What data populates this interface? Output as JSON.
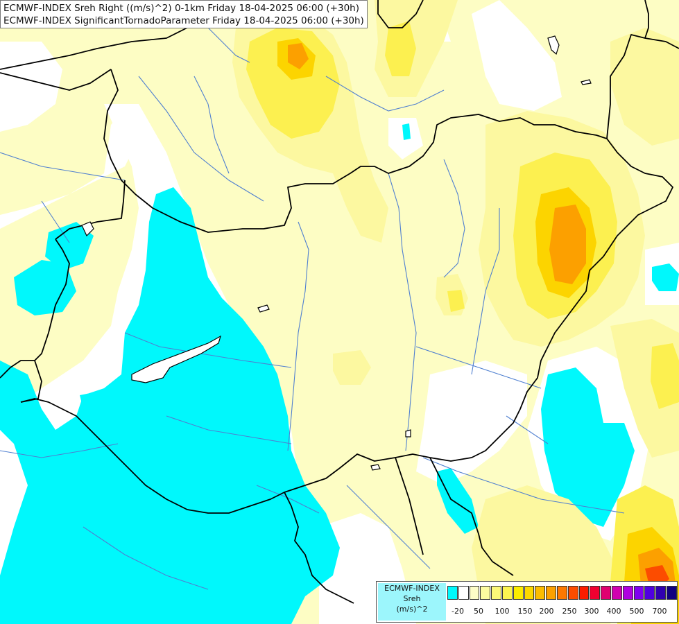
{
  "header": {
    "line1": "ECMWF-INDEX Sreh Right ((m/s)^2) 0-1km Friday 18-04-2025 06:00 (+30h)",
    "line2": "ECMWF-INDEX SignificantTornadoParameter Friday 18-04-2025 06:00 (+30h)"
  },
  "legend": {
    "source": "ECMWF-INDEX",
    "parameter": "Sreh",
    "unit": "(m/s)^2",
    "colors": [
      "#00f8fc",
      "#ffffff",
      "#fdfdc8",
      "#fcfca0",
      "#fcf878",
      "#fcf450",
      "#fcec00",
      "#fcd800",
      "#fcbc00",
      "#fca000",
      "#fc7800",
      "#fc4c00",
      "#fc1c00",
      "#f00030",
      "#e00070",
      "#d000b0",
      "#b000e0",
      "#8000f0",
      "#5000e0",
      "#3000b0",
      "#100080"
    ],
    "ticks": [
      "-20",
      "50",
      "100",
      "150",
      "200",
      "250",
      "300",
      "400",
      "500",
      "700"
    ]
  },
  "colors": {
    "cyan": "#00f8fc",
    "pale_yellow": "#fdfdc0",
    "light_yellow": "#fcf894",
    "yellow": "#fcf050",
    "amber": "#fcd400",
    "orange": "#fca000",
    "red": "#fc4c00",
    "border": "#000000",
    "river": "#4f7fd0"
  }
}
